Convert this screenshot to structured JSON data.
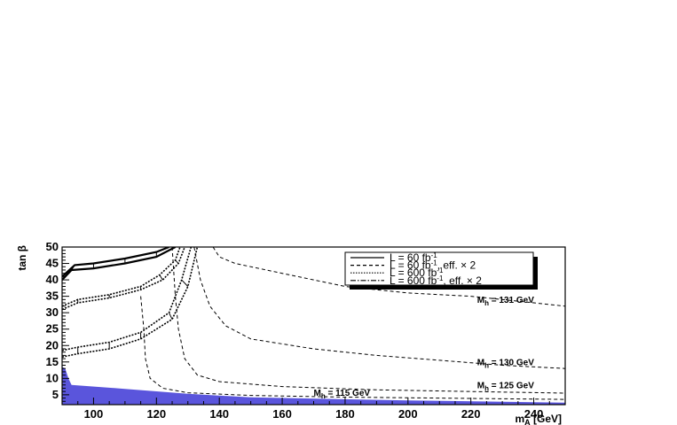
{
  "chart_data": {
    "type": "line",
    "xlabel": "m",
    "xlabel_sub": "A",
    "xlabel_unit": " [GeV]",
    "ylabel": "tan β",
    "xlim": [
      90,
      250
    ],
    "ylim": [
      2,
      50
    ],
    "x_ticks": [
      100,
      120,
      140,
      160,
      180,
      200,
      220,
      240
    ],
    "y_ticks": [
      5,
      10,
      15,
      20,
      25,
      30,
      35,
      40,
      45,
      50
    ],
    "legend": {
      "placement": "top-right",
      "entries": [
        {
          "style": "solid",
          "text": "L = 60 fb",
          "sup": "-1",
          "suffix": ""
        },
        {
          "style": "dashed",
          "text": "L = 60 fb",
          "sup": "-1",
          "suffix": ", eff. × 2"
        },
        {
          "style": "dotted",
          "text": "L = 600 fb",
          "sup": "-1",
          "suffix": ""
        },
        {
          "style": "dashdot",
          "text": "L = 600 fb",
          "sup": "-1",
          "suffix": ", eff. × 2"
        }
      ]
    },
    "excluded_region": {
      "color": "#5a55dc",
      "points": [
        [
          90,
          2
        ],
        [
          90,
          13.5
        ],
        [
          91,
          13
        ],
        [
          92,
          10
        ],
        [
          93,
          8
        ],
        [
          110,
          6.8
        ],
        [
          130,
          5.3
        ],
        [
          150,
          4.2
        ],
        [
          200,
          3.3
        ],
        [
          250,
          2.6
        ],
        [
          250,
          2
        ]
      ]
    },
    "mass_contours": [
      {
        "label": "M",
        "sub": "h",
        "value": " = 131 GeV",
        "label_at": [
          222,
          33
        ],
        "points": [
          [
            138,
            50
          ],
          [
            140,
            47
          ],
          [
            145,
            45
          ],
          [
            160,
            42
          ],
          [
            180,
            38
          ],
          [
            200,
            36
          ],
          [
            220,
            35
          ],
          [
            240,
            33
          ],
          [
            250,
            32
          ]
        ]
      },
      {
        "label": "M",
        "sub": "h",
        "value": " = 130 GeV",
        "label_at": [
          222,
          14
        ],
        "points": [
          [
            132,
            50
          ],
          [
            134,
            40
          ],
          [
            137,
            32
          ],
          [
            142,
            26
          ],
          [
            150,
            22
          ],
          [
            170,
            19
          ],
          [
            190,
            17
          ],
          [
            210,
            15.5
          ],
          [
            230,
            14
          ],
          [
            250,
            13
          ]
        ]
      },
      {
        "label": "M",
        "sub": "h",
        "value": " = 125 GeV",
        "label_at": [
          222,
          7
        ],
        "points": [
          [
            125,
            50
          ],
          [
            126,
            35
          ],
          [
            127,
            25
          ],
          [
            129,
            16
          ],
          [
            133,
            11
          ],
          [
            140,
            9
          ],
          [
            160,
            7.5
          ],
          [
            190,
            6.5
          ],
          [
            220,
            6
          ],
          [
            250,
            5.5
          ]
        ]
      },
      {
        "label": "M",
        "sub": "h",
        "value": " = 115 GeV",
        "label_at": [
          170,
          4.7
        ],
        "points": [
          [
            115,
            35
          ],
          [
            116,
            25
          ],
          [
            116.5,
            16
          ],
          [
            118,
            10
          ],
          [
            122,
            7
          ],
          [
            130,
            5.6
          ],
          [
            150,
            4.8
          ],
          [
            180,
            4.3
          ],
          [
            220,
            3.9
          ],
          [
            250,
            3.6
          ]
        ]
      }
    ],
    "discovery_contours": [
      {
        "series": "L = 60 fb⁻¹",
        "outer": [
          [
            90,
            40
          ],
          [
            93,
            43
          ],
          [
            100,
            43.5
          ],
          [
            110,
            45
          ],
          [
            120,
            47
          ],
          [
            126,
            50
          ]
        ],
        "inner": [
          [
            90,
            41
          ],
          [
            94,
            44.5
          ],
          [
            100,
            45
          ],
          [
            110,
            46.5
          ],
          [
            120,
            48.5
          ],
          [
            124,
            50
          ]
        ]
      },
      {
        "series": "L = 600 fb⁻¹",
        "outer": [
          [
            90,
            31
          ],
          [
            95,
            33
          ],
          [
            105,
            34.5
          ],
          [
            115,
            37
          ],
          [
            122,
            40
          ],
          [
            127,
            45
          ],
          [
            129,
            50
          ]
        ],
        "inner": [
          [
            90,
            32
          ],
          [
            95,
            34
          ],
          [
            105,
            35.5
          ],
          [
            115,
            38
          ],
          [
            121,
            41.5
          ],
          [
            126,
            46
          ],
          [
            127.5,
            50
          ]
        ]
      },
      {
        "series": "L = 600 fb⁻¹",
        "outer": [
          [
            90,
            16.5
          ],
          [
            95,
            17.5
          ],
          [
            105,
            19
          ],
          [
            115,
            22
          ],
          [
            125,
            28
          ],
          [
            130,
            38
          ],
          [
            133,
            50
          ]
        ],
        "inner": [
          [
            90,
            18.5
          ],
          [
            95,
            19.5
          ],
          [
            105,
            21
          ],
          [
            115,
            24
          ],
          [
            124,
            30
          ],
          [
            128,
            40
          ],
          [
            131,
            50
          ]
        ]
      }
    ]
  }
}
